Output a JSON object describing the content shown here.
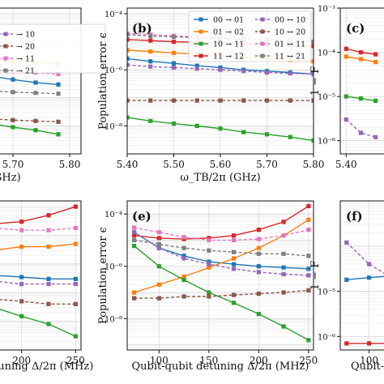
{
  "chart_data": [
    {
      "type": "line",
      "panel": "a (cropped)",
      "xlabel": "GHz)",
      "ylabel": "",
      "xscale": "linear",
      "yscale": "log",
      "xlim": [
        5.62,
        5.82
      ],
      "ylim_exp": [
        -9,
        -3.8
      ],
      "xticks": [
        5.7,
        5.8
      ],
      "xtick_labels": [
        "5.70",
        "5.80"
      ],
      "yticks": [],
      "ytick_labels": [],
      "legend": [
        "→ 10",
        "→ 20",
        "→ 11",
        "→ 21"
      ],
      "x": [
        5.62,
        5.66,
        5.7,
        5.74,
        5.78
      ],
      "series": [
        {
          "color": "#ff7f0e",
          "style": "solid",
          "values": [
            2.5e-06,
            2.2e-06,
            2e-06,
            1.8e-06,
            1.6e-06
          ]
        },
        {
          "color": "#1f77b4",
          "style": "solid",
          "values": [
            8e-07,
            6e-07,
            4.5e-07,
            3.5e-07,
            3e-07
          ]
        },
        {
          "color": "#e377c2",
          "style": "dashed",
          "values": [
            1.2e-06,
            1e-06,
            9e-07,
            8e-07,
            7e-07
          ]
        },
        {
          "color": "#7f7f7f",
          "style": "dashed",
          "values": [
            2e-07,
            1.8e-07,
            1.6e-07,
            1.5e-07,
            1.4e-07
          ]
        },
        {
          "color": "#8c564b",
          "style": "dashed",
          "values": [
            2e-08,
            1.8e-08,
            1.6e-08,
            1.5e-08,
            1.4e-08
          ]
        },
        {
          "color": "#2ca02c",
          "style": "solid",
          "values": [
            1.5e-08,
            1.2e-08,
            9e-09,
            7e-09,
            5e-09
          ]
        }
      ]
    },
    {
      "type": "line",
      "panel": "(b)",
      "xlabel": "ω_TB/2π (GHz)",
      "ylabel": "Population error ϵ",
      "xscale": "linear",
      "yscale": "log",
      "xlim": [
        5.4,
        5.8
      ],
      "ylim_exp": [
        -9,
        -3.8
      ],
      "xticks": [
        5.4,
        5.5,
        5.6,
        5.7,
        5.8
      ],
      "xtick_labels": [
        "5.40",
        "5.50",
        "5.60",
        "5.70",
        "5.80"
      ],
      "yticks": [
        -8,
        -6,
        -4
      ],
      "ytick_labels": [
        "10⁻⁸",
        "10⁻⁶",
        "10⁻⁴"
      ],
      "legend": [
        "00 → 01",
        "01 → 02",
        "10 → 11",
        "11 → 12",
        "00 ↔ 10",
        "10 ↔ 20",
        "01 ↔ 11",
        "11 ↔ 21"
      ],
      "x": [
        5.4,
        5.45,
        5.5,
        5.55,
        5.6,
        5.65,
        5.7,
        5.75,
        5.8
      ],
      "series": [
        {
          "name": "00 → 01",
          "color": "#1f77b4",
          "style": "solid",
          "values": [
            2.5e-06,
            2e-06,
            1.7e-06,
            1.4e-06,
            1.2e-06,
            1e-06,
            9e-07,
            8e-07,
            7e-07
          ]
        },
        {
          "name": "01 → 02",
          "color": "#ff7f0e",
          "style": "solid",
          "values": [
            5e-06,
            4.5e-06,
            4e-06,
            3.6e-06,
            3.2e-06,
            2.8e-06,
            2.5e-06,
            2.2e-06,
            2e-06
          ]
        },
        {
          "name": "10 → 11",
          "color": "#2ca02c",
          "style": "solid",
          "values": [
            2e-08,
            1.5e-08,
            1.2e-08,
            1e-08,
            8e-09,
            6e-09,
            5e-09,
            4e-09,
            3e-09
          ]
        },
        {
          "name": "11 → 12",
          "color": "#d62728",
          "style": "solid",
          "values": [
            1.2e-05,
            1.1e-05,
            1e-05,
            9.5e-06,
            9e-06,
            8.5e-06,
            8e-06,
            7.5e-06,
            7e-06
          ]
        },
        {
          "name": "00 ↔ 10",
          "color": "#9467bd",
          "style": "dashed",
          "values": [
            1.5e-06,
            1.3e-06,
            1.2e-06,
            1.1e-06,
            1e-06,
            9e-07,
            8e-07,
            7.5e-07,
            7e-07
          ]
        },
        {
          "name": "10 ↔ 20",
          "color": "#8c564b",
          "style": "dashed",
          "values": [
            8e-08,
            8e-08,
            8e-08,
            8e-08,
            8e-08,
            8e-08,
            8e-08,
            8e-08,
            8e-08
          ]
        },
        {
          "name": "01 ↔ 11",
          "color": "#e377c2",
          "style": "dashed",
          "values": [
            2e-05,
            1.8e-05,
            1.6e-05,
            1.5e-05,
            1.4e-05,
            1.3e-05,
            1.2e-05,
            1.1e-05,
            1e-05
          ]
        },
        {
          "name": "11 ↔ 21",
          "color": "#7f7f7f",
          "style": "dashed",
          "values": [
            1.8e-05,
            1.6e-05,
            1.5e-05,
            1.4e-05,
            1.3e-05,
            1.2e-05,
            1.1e-05,
            1.05e-05,
            1e-05
          ]
        }
      ]
    },
    {
      "type": "line",
      "panel": "(c)",
      "xlabel": "",
      "ylabel": "1 − F",
      "xscale": "linear",
      "yscale": "log",
      "xlim": [
        5.38,
        5.6
      ],
      "ylim_exp": [
        -6.3,
        -3
      ],
      "xticks": [
        5.4
      ],
      "xtick_labels": [
        "5.40"
      ],
      "yticks": [
        -6,
        -5,
        -4,
        -3
      ],
      "ytick_labels": [
        "10⁻⁶",
        "10⁻⁵",
        "10⁻⁴",
        "10⁻³"
      ],
      "x": [
        5.4,
        5.45,
        5.5
      ],
      "series": [
        {
          "color": "#d62728",
          "style": "solid",
          "values": [
            0.00012,
            0.0001,
            9e-05
          ]
        },
        {
          "color": "#ff7f0e",
          "style": "solid",
          "values": [
            8e-05,
            7e-05,
            6e-05
          ]
        },
        {
          "color": "#2ca02c",
          "style": "solid",
          "values": [
            1e-05,
            9e-06,
            8e-06
          ]
        },
        {
          "color": "#9467bd",
          "style": "dashed",
          "values": [
            3e-06,
            1.5e-06,
            1.2e-06
          ]
        }
      ]
    },
    {
      "type": "line",
      "panel": "d (cropped)",
      "xlabel": "tuning Δ/2π (MHz)",
      "ylabel": "",
      "xscale": "linear",
      "yscale": "log",
      "xlim": [
        150,
        255
      ],
      "ylim_exp": [
        -9,
        -3.8
      ],
      "xticks": [
        200,
        250
      ],
      "xtick_labels": [
        "200",
        "250"
      ],
      "yticks": [],
      "ytick_labels": [],
      "x": [
        150,
        175,
        200,
        225,
        250
      ],
      "series": [
        {
          "color": "#d62728",
          "style": "solid",
          "values": [
            2e-05,
            2.5e-05,
            3e-05,
            5e-05,
            0.0001
          ]
        },
        {
          "color": "#ff7f0e",
          "style": "solid",
          "values": [
            3e-06,
            3e-06,
            4e-06,
            4e-06,
            5e-06
          ]
        },
        {
          "color": "#e377c2",
          "style": "dashed",
          "values": [
            2e-05,
            1.8e-05,
            1.5e-05,
            1.5e-05,
            1.8e-05
          ]
        },
        {
          "color": "#1f77b4",
          "style": "solid",
          "values": [
            5e-07,
            4e-07,
            3.5e-07,
            3e-07,
            3e-07
          ]
        },
        {
          "color": "#9467bd",
          "style": "dashed",
          "values": [
            3e-07,
            2.5e-07,
            2e-07,
            2e-07,
            2e-07
          ]
        },
        {
          "color": "#8c564b",
          "style": "dashed",
          "values": [
            8e-08,
            6e-08,
            5e-08,
            4e-08,
            4e-08
          ]
        },
        {
          "color": "#2ca02c",
          "style": "solid",
          "values": [
            5e-08,
            3e-08,
            1.5e-08,
            8e-09,
            3e-09
          ]
        }
      ]
    },
    {
      "type": "line",
      "panel": "(e)",
      "xlabel": "Qubit-qubit detuning Δ/2π (MHz)",
      "ylabel": "Population error ϵ",
      "xscale": "linear",
      "yscale": "log",
      "xlim": [
        68,
        255
      ],
      "ylim_exp": [
        -9.2,
        -3.5
      ],
      "xticks": [
        100,
        150,
        200,
        250
      ],
      "xtick_labels": [
        "100",
        "150",
        "200",
        "250"
      ],
      "yticks": [
        -8,
        -6,
        -4
      ],
      "ytick_labels": [
        "10⁻⁸",
        "10⁻⁶",
        "10⁻⁴"
      ],
      "x": [
        75,
        100,
        125,
        150,
        175,
        200,
        225,
        250
      ],
      "series": [
        {
          "color": "#1f77b4",
          "style": "solid",
          "values": [
            2e-05,
            5e-06,
            2.5e-06,
            1.5e-06,
            1.2e-06,
            1e-06,
            9e-07,
            8e-07
          ]
        },
        {
          "color": "#ff7f0e",
          "style": "solid",
          "values": [
            1e-07,
            2e-07,
            4e-07,
            9e-07,
            2e-06,
            5e-06,
            1.5e-05,
            6e-05
          ]
        },
        {
          "color": "#2ca02c",
          "style": "solid",
          "values": [
            6e-06,
            1e-06,
            3e-07,
            1e-07,
            4e-08,
            1.5e-08,
            5e-09,
            1.5e-09
          ]
        },
        {
          "color": "#d62728",
          "style": "solid",
          "values": [
            1.5e-05,
            1.2e-05,
            1.1e-05,
            1.2e-05,
            1.5e-05,
            2.5e-05,
            5e-05,
            0.0002
          ]
        },
        {
          "color": "#9467bd",
          "style": "dashed",
          "values": [
            2e-05,
            5e-06,
            2e-06,
            1.2e-06,
            8e-07,
            6e-07,
            5e-07,
            4.5e-07
          ]
        },
        {
          "color": "#8c564b",
          "style": "dashed",
          "values": [
            6e-08,
            6e-08,
            7e-08,
            7e-08,
            8e-08,
            9e-08,
            1e-07,
            1.2e-07
          ]
        },
        {
          "color": "#e377c2",
          "style": "dashed",
          "values": [
            3e-05,
            2e-05,
            1.3e-05,
            1e-05,
            1e-05,
            1.1e-05,
            1.5e-05,
            2.5e-05
          ]
        },
        {
          "color": "#7f7f7f",
          "style": "dashed",
          "values": [
            1e-05,
            7e-06,
            5e-06,
            4e-06,
            3.5e-06,
            3e-06,
            3e-06,
            2.5e-06
          ]
        }
      ]
    },
    {
      "type": "line",
      "panel": "(f)",
      "xlabel": "Qubit-",
      "ylabel": "1 − F",
      "xscale": "linear",
      "yscale": "log",
      "xlim": [
        68,
        140
      ],
      "ylim_exp": [
        -6.3,
        -3
      ],
      "xticks": [
        100
      ],
      "xtick_labels": [
        "100"
      ],
      "yticks": [
        -6,
        -5
      ],
      "ytick_labels": [
        "10⁻⁶",
        "10⁻⁵"
      ],
      "x": [
        75,
        100,
        125
      ],
      "series": [
        {
          "color": "#9467bd",
          "style": "dashed",
          "values": [
            0.00012,
            4e-05,
            2e-05
          ]
        },
        {
          "color": "#1f77b4",
          "style": "solid",
          "values": [
            1.8e-05,
            2e-05,
            2.2e-05
          ]
        },
        {
          "color": "#d62728",
          "style": "solid",
          "values": [
            7e-07,
            7e-07,
            7e-07
          ]
        }
      ]
    }
  ]
}
